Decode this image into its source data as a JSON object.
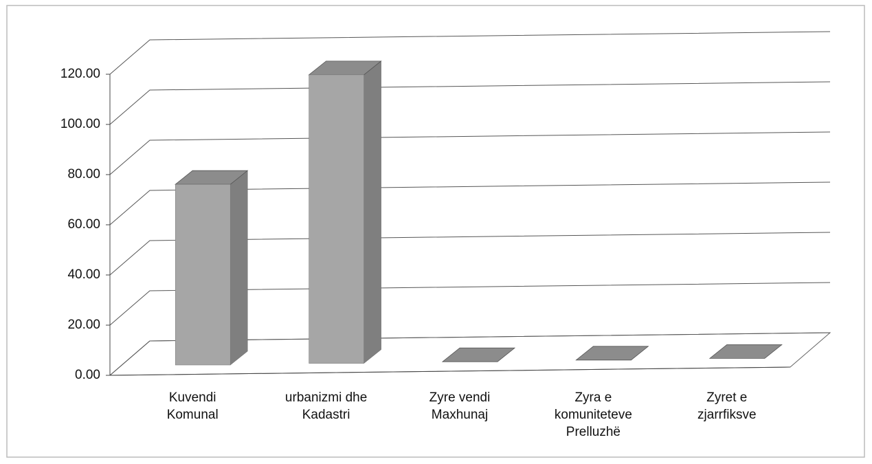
{
  "chart_data": {
    "type": "bar3d",
    "categories": [
      "Kuvendi Komunal",
      "urbanizmi dhe Kadastri",
      "Zyre vendi Maxhunaj",
      "Zyra e komuniteteve Prelluzhë",
      "Zyret e zjarrfiksve"
    ],
    "values": [
      72,
      115,
      0,
      0,
      0
    ],
    "color": "#a6a6a6",
    "ylim": [
      0,
      120
    ],
    "yticks": [
      {
        "value": 0,
        "label": "0.00"
      },
      {
        "value": 20,
        "label": "20.00"
      },
      {
        "value": 40,
        "label": "40.00"
      },
      {
        "value": 60,
        "label": "60.00"
      },
      {
        "value": 80,
        "label": "80.00"
      },
      {
        "value": 100,
        "label": "100.00"
      },
      {
        "value": 120,
        "label": "120.00"
      }
    ],
    "grid": true
  }
}
